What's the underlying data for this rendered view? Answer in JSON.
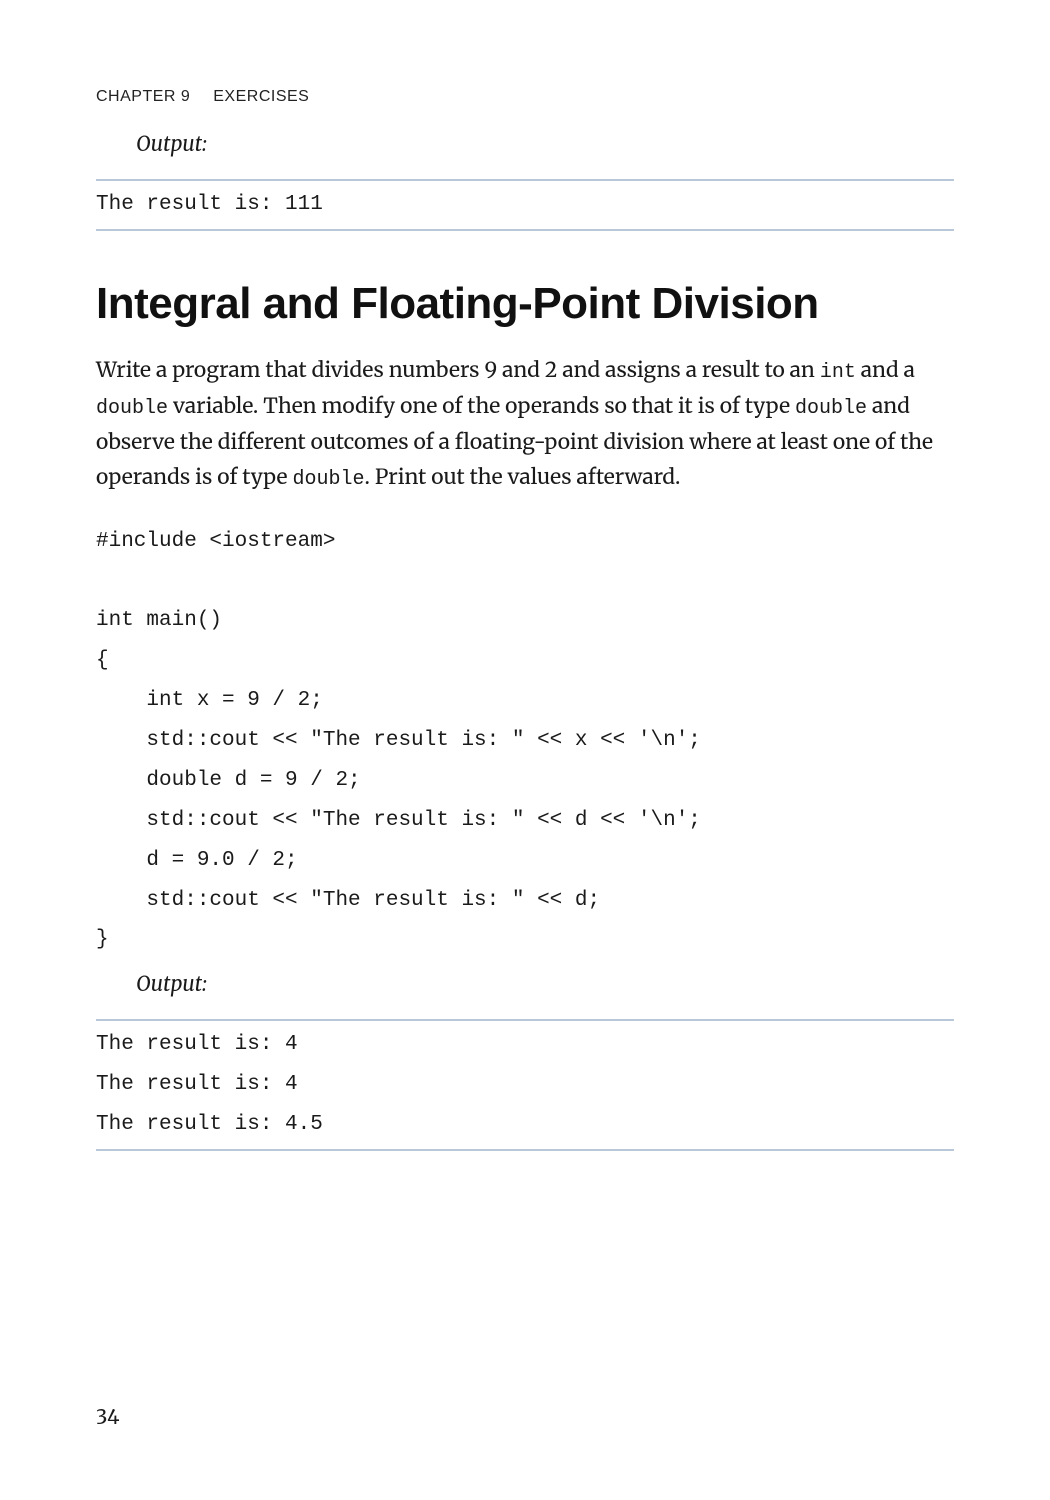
{
  "running_head": {
    "chapter": "CHAPTER 9",
    "title": "EXERCISES"
  },
  "output_label_1": "Output:",
  "output_block_1": "The result is: 111",
  "section_heading": "Integral and Floating-Point Division",
  "body_paragraph": {
    "t1": "Write a program that divides numbers 9 and 2 and assigns a result to an ",
    "m1": "int",
    "t2": " and a ",
    "m2": "double",
    "t3": " variable. Then modify one of the operands so that it is of type ",
    "m3": "double",
    "t4": " and observe the different outcomes of a floating-point division where at least one of the operands is of type ",
    "m4": "double",
    "t5": ". Print out the values afterward."
  },
  "code_block": "#include <iostream>\n\nint main()\n{\n    int x = 9 / 2;\n    std::cout << \"The result is: \" << x << '\\n';\n    double d = 9 / 2;\n    std::cout << \"The result is: \" << d << '\\n';\n    d = 9.0 / 2;\n    std::cout << \"The result is: \" << d;\n}",
  "output_label_2": "Output:",
  "output_block_2": "The result is: 4\nThe result is: 4\nThe result is: 4.5",
  "page_number": "34",
  "colors": {
    "rule": "#b8c8d8",
    "text": "#1a1a1a",
    "heading": "#111111",
    "background": "#ffffff"
  },
  "fonts": {
    "body_family": "Merriweather, Georgia, Times New Roman, serif",
    "heading_family": "Helvetica Neue, Helvetica, Arial, sans-serif",
    "mono_family": "Menlo, Consolas, Courier New, monospace",
    "body_size_pt": 16,
    "heading_size_pt": 33,
    "mono_size_pt": 16
  }
}
